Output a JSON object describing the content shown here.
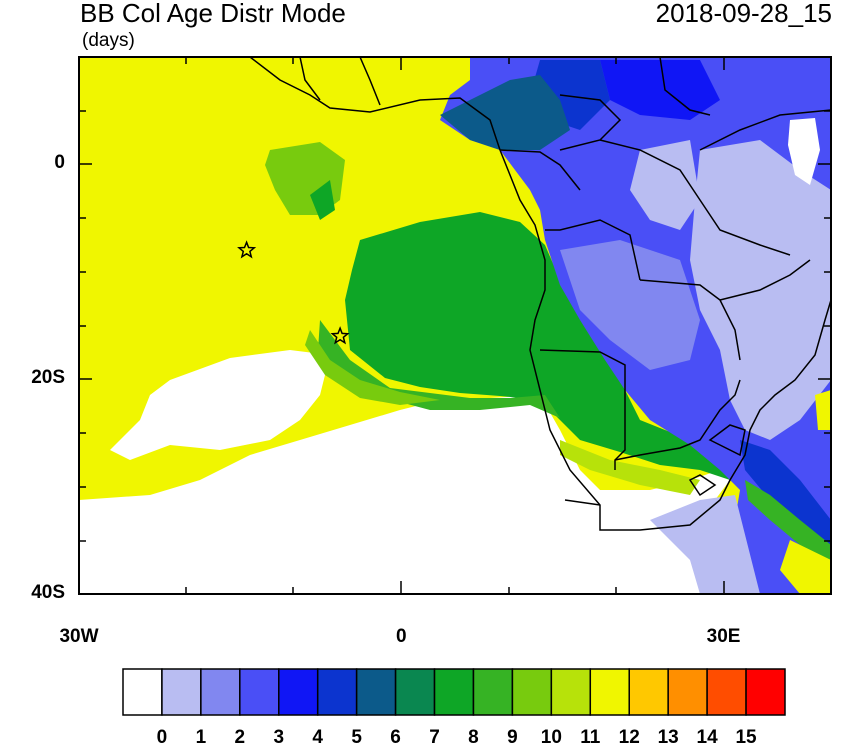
{
  "header": {
    "title": "BB Col Age Distr Mode",
    "units": "(days)",
    "date": "2018-09-28_15"
  },
  "axes": {
    "y_ticks": [
      {
        "value": 0,
        "label": "0"
      },
      {
        "value": -20,
        "label": "20S"
      },
      {
        "value": -40,
        "label": "40S"
      }
    ],
    "x_ticks": [
      {
        "value": -30,
        "label": "30W"
      },
      {
        "value": 0,
        "label": "0"
      },
      {
        "value": 30,
        "label": "30E"
      }
    ],
    "lon_range": [
      -30,
      40
    ],
    "lat_range": [
      -40,
      10
    ]
  },
  "markers": [
    {
      "name": "star-marker",
      "lon": -14.4,
      "lat": -8.0
    },
    {
      "name": "star-marker",
      "lon": -5.7,
      "lat": -16.0
    }
  ],
  "colorbar": {
    "labels": [
      "0",
      "1",
      "2",
      "3",
      "4",
      "5",
      "6",
      "7",
      "8",
      "9",
      "10",
      "11",
      "12",
      "13",
      "14",
      "15"
    ],
    "colors": [
      "#ffffff",
      "#b9bdf2",
      "#8187f0",
      "#4a4ff6",
      "#1016f5",
      "#0c34cf",
      "#0c5a8a",
      "#0a8750",
      "#0ea626",
      "#36b324",
      "#78cb0e",
      "#b7e20a",
      "#f0f600",
      "#ffc800",
      "#ff8f00",
      "#ff4d00",
      "#ff0000"
    ]
  }
}
